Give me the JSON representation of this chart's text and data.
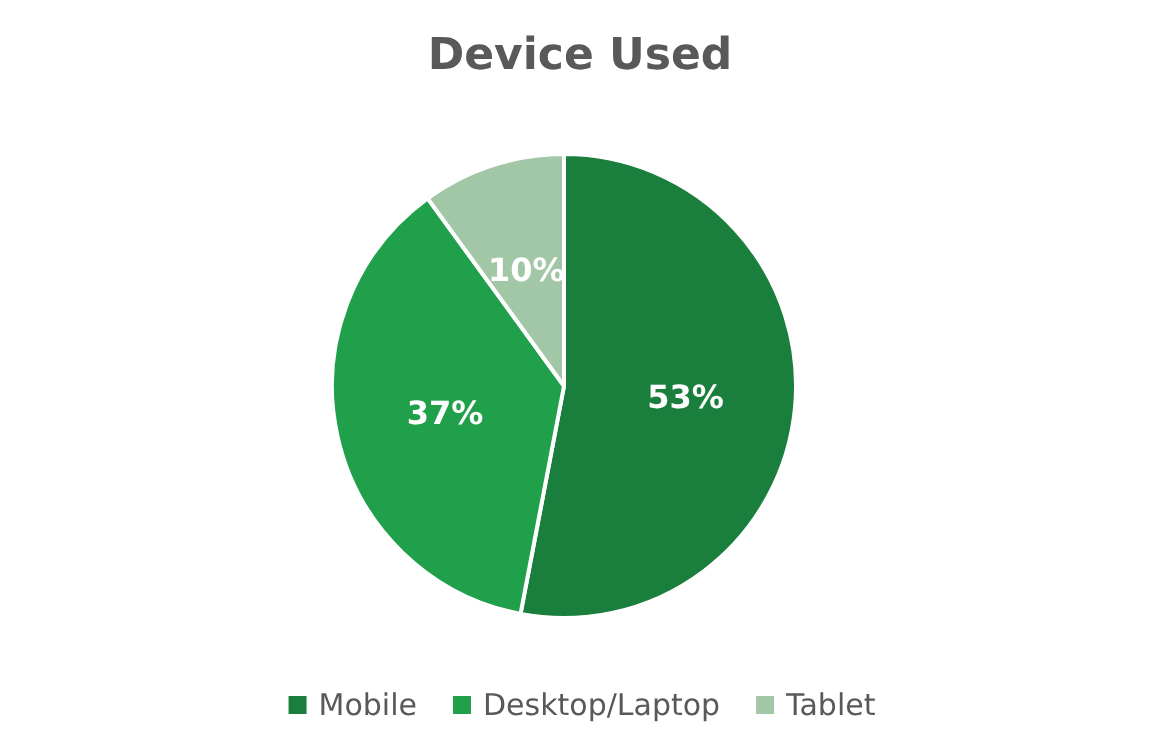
{
  "chart_data": {
    "type": "pie",
    "title": "Device Used",
    "categories": [
      "Mobile",
      "Desktop/Laptop",
      "Tablet"
    ],
    "values": [
      53,
      37,
      10
    ],
    "value_labels": [
      "53%",
      "37%",
      "10%"
    ],
    "colors": [
      "#1a7f3c",
      "#21a04b",
      "#a2c7a6"
    ],
    "legend": "bottom"
  }
}
